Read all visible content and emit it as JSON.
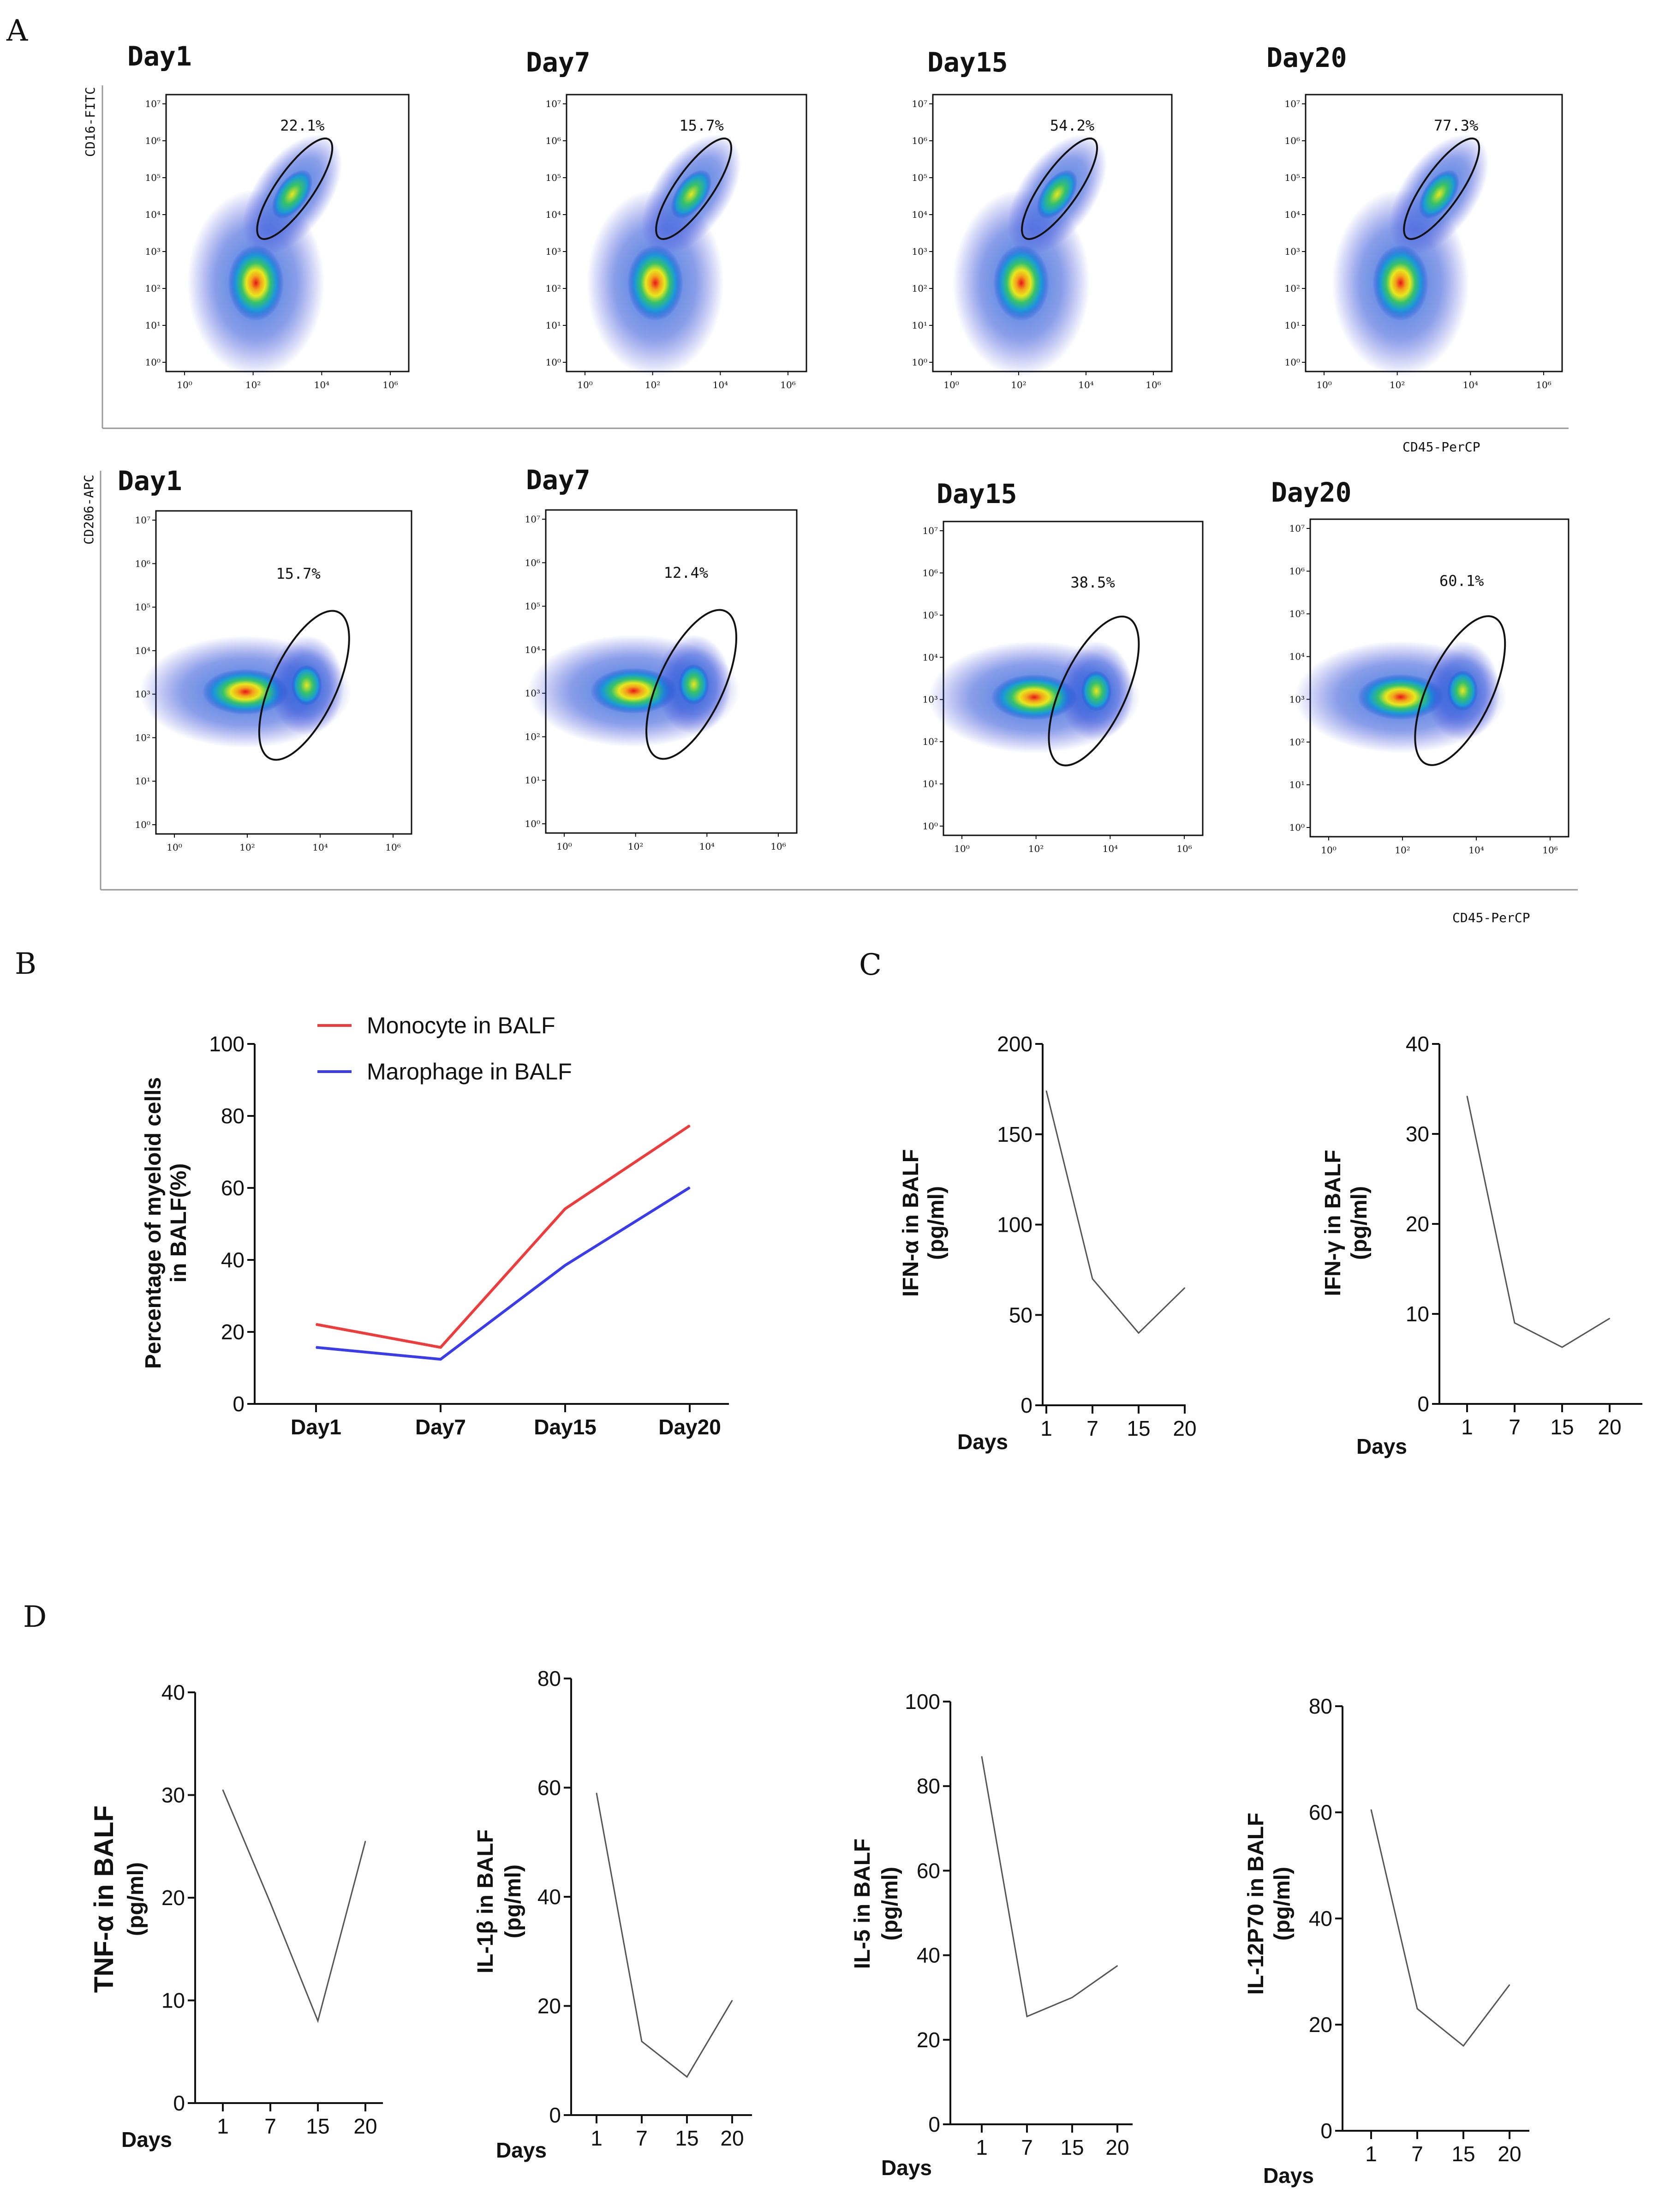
{
  "panel_labels": {
    "a": "A",
    "b": "B",
    "c": "C",
    "d": "D"
  },
  "colors": {
    "monocyte": "#ee3b3b",
    "macrophage": "#3b3bee",
    "line": "#555555",
    "gate": "#111111"
  },
  "flow": {
    "row1": {
      "y_axis_label": "CD16-FITC",
      "x_axis_label": "CD45-PerCP",
      "plots": [
        {
          "day": "Day1",
          "percent": "22.1%"
        },
        {
          "day": "Day7",
          "percent": "15.7%"
        },
        {
          "day": "Day15",
          "percent": "54.2%"
        },
        {
          "day": "Day20",
          "percent": "77.3%"
        }
      ]
    },
    "row2": {
      "y_axis_label": "CD206-APC",
      "x_axis_label": "CD45-PerCP",
      "plots": [
        {
          "day": "Day1",
          "percent": "15.7%"
        },
        {
          "day": "Day7",
          "percent": "12.4%"
        },
        {
          "day": "Day15",
          "percent": "38.5%"
        },
        {
          "day": "Day20",
          "percent": "60.1%"
        }
      ]
    },
    "y_ticks": [
      "10⁰",
      "10¹",
      "10²",
      "10³",
      "10⁴",
      "10⁵",
      "10⁶",
      "10⁷"
    ],
    "x_ticks": [
      "10⁰",
      "10²",
      "10⁴",
      "10⁶"
    ]
  },
  "chart_data": [
    {
      "type": "line",
      "panel": "B",
      "title": "",
      "categories": [
        "Day1",
        "Day7",
        "Day15",
        "Day20"
      ],
      "ylabel_line1": "Percentage of myeloid cells",
      "ylabel_line2": "in BALF(%)",
      "xlabel": "",
      "ylim": [
        0,
        100
      ],
      "yticks": [
        0,
        20,
        40,
        60,
        80,
        100
      ],
      "legend_position": "top-center",
      "series": [
        {
          "name": "Monocyte in BALF",
          "values": [
            22.1,
            15.7,
            54.2,
            77.3
          ],
          "color": "#ee3b3b"
        },
        {
          "name": "Marophage in BALF",
          "values": [
            15.7,
            12.4,
            38.5,
            60.1
          ],
          "color": "#3b3bee"
        }
      ]
    },
    {
      "type": "line",
      "panel": "C",
      "ylabel_line1": "IFN-α in BALF",
      "ylabel_line2": "(pg/ml)",
      "xlabel": "Days",
      "categories": [
        "1",
        "7",
        "15",
        "20"
      ],
      "ylim": [
        0,
        200
      ],
      "yticks": [
        0,
        50,
        100,
        150,
        200
      ],
      "values": [
        174,
        70,
        40,
        65
      ]
    },
    {
      "type": "line",
      "panel": "C",
      "ylabel_line1": "IFN-γ in BALF",
      "ylabel_line2": "(pg/ml)",
      "xlabel": "Days",
      "categories": [
        "1",
        "7",
        "15",
        "20"
      ],
      "ylim": [
        0,
        40
      ],
      "yticks": [
        0,
        10,
        20,
        30,
        40
      ],
      "values": [
        34.2,
        9.0,
        6.3,
        9.5
      ]
    },
    {
      "type": "line",
      "panel": "D",
      "ylabel_line1": "TNF-α in BALF",
      "ylabel_line2": "(pg/ml)",
      "xlabel": "Days",
      "categories": [
        "1",
        "7",
        "15",
        "20"
      ],
      "ylim": [
        0,
        40
      ],
      "yticks": [
        0,
        10,
        20,
        30,
        40
      ],
      "values": [
        30.5,
        19.5,
        8.0,
        25.5
      ]
    },
    {
      "type": "line",
      "panel": "D",
      "ylabel_line1": "IL-1β in BALF",
      "ylabel_line2": "(pg/ml)",
      "xlabel": "Days",
      "categories": [
        "1",
        "7",
        "15",
        "20"
      ],
      "ylim": [
        0,
        80
      ],
      "yticks": [
        0,
        20,
        40,
        60,
        80
      ],
      "values": [
        59,
        13.5,
        7,
        21
      ]
    },
    {
      "type": "line",
      "panel": "D",
      "ylabel_line1": "IL-5 in BALF",
      "ylabel_line2": "(pg/ml)",
      "xlabel": "Days",
      "categories": [
        "1",
        "7",
        "15",
        "20"
      ],
      "ylim": [
        0,
        100
      ],
      "yticks": [
        0,
        20,
        40,
        60,
        80,
        100
      ],
      "values": [
        87,
        25.5,
        30,
        37.5
      ]
    },
    {
      "type": "line",
      "panel": "D",
      "ylabel_line1": "IL-12P70 in BALF",
      "ylabel_line2": "(pg/ml)",
      "xlabel": "Days",
      "categories": [
        "1",
        "7",
        "15",
        "20"
      ],
      "ylim": [
        0,
        80
      ],
      "yticks": [
        0,
        20,
        40,
        60,
        80
      ],
      "values": [
        60.5,
        23,
        16,
        27.5
      ]
    }
  ]
}
